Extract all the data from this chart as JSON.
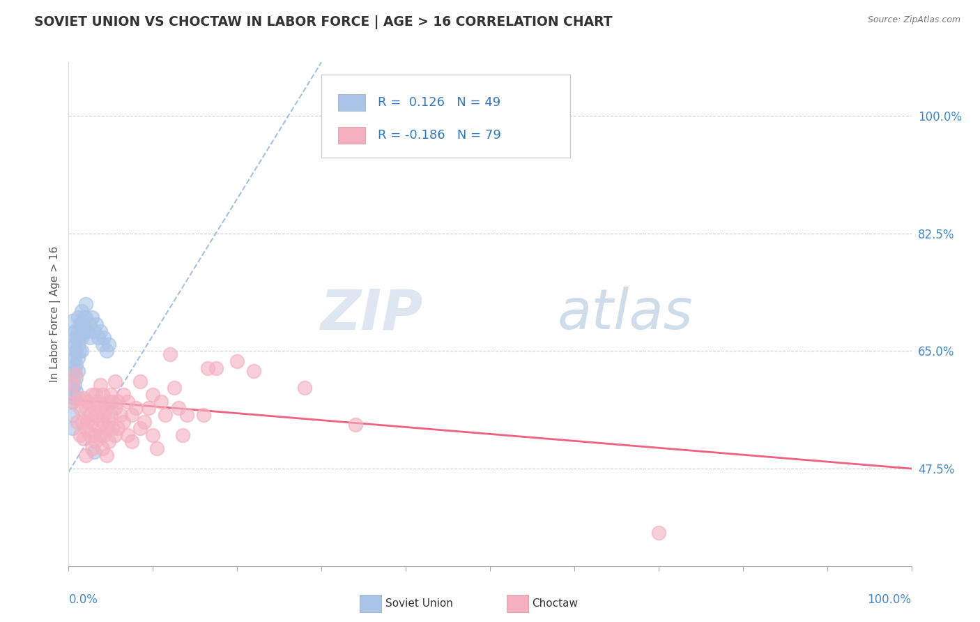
{
  "title": "SOVIET UNION VS CHOCTAW IN LABOR FORCE | AGE > 16 CORRELATION CHART",
  "source": "Source: ZipAtlas.com",
  "ylabel": "In Labor Force | Age > 16",
  "ytick_labels": [
    "47.5%",
    "65.0%",
    "82.5%",
    "100.0%"
  ],
  "ytick_values": [
    0.475,
    0.65,
    0.825,
    1.0
  ],
  "xlim": [
    0.0,
    1.0
  ],
  "ylim": [
    0.33,
    1.08
  ],
  "watermark_zip": "ZIP",
  "watermark_atlas": "atlas",
  "soviet_color": "#aac4e8",
  "choctaw_color": "#f4afc0",
  "soviet_line_color": "#99bbdd",
  "choctaw_line_color": "#f06080",
  "soviet_scatter": [
    [
      0.005,
      0.695
    ],
    [
      0.005,
      0.675
    ],
    [
      0.005,
      0.655
    ],
    [
      0.005,
      0.635
    ],
    [
      0.005,
      0.615
    ],
    [
      0.005,
      0.595
    ],
    [
      0.005,
      0.575
    ],
    [
      0.005,
      0.555
    ],
    [
      0.005,
      0.535
    ],
    [
      0.007,
      0.68
    ],
    [
      0.007,
      0.66
    ],
    [
      0.007,
      0.64
    ],
    [
      0.007,
      0.62
    ],
    [
      0.007,
      0.6
    ],
    [
      0.007,
      0.58
    ],
    [
      0.009,
      0.67
    ],
    [
      0.009,
      0.65
    ],
    [
      0.009,
      0.63
    ],
    [
      0.009,
      0.61
    ],
    [
      0.009,
      0.59
    ],
    [
      0.011,
      0.7
    ],
    [
      0.011,
      0.68
    ],
    [
      0.011,
      0.66
    ],
    [
      0.011,
      0.64
    ],
    [
      0.011,
      0.62
    ],
    [
      0.013,
      0.69
    ],
    [
      0.013,
      0.67
    ],
    [
      0.013,
      0.65
    ],
    [
      0.015,
      0.71
    ],
    [
      0.015,
      0.69
    ],
    [
      0.015,
      0.67
    ],
    [
      0.015,
      0.65
    ],
    [
      0.018,
      0.7
    ],
    [
      0.018,
      0.68
    ],
    [
      0.02,
      0.72
    ],
    [
      0.02,
      0.7
    ],
    [
      0.022,
      0.68
    ],
    [
      0.025,
      0.69
    ],
    [
      0.025,
      0.67
    ],
    [
      0.028,
      0.7
    ],
    [
      0.03,
      0.68
    ],
    [
      0.03,
      0.5
    ],
    [
      0.033,
      0.69
    ],
    [
      0.035,
      0.67
    ],
    [
      0.038,
      0.68
    ],
    [
      0.04,
      0.66
    ],
    [
      0.042,
      0.67
    ],
    [
      0.045,
      0.65
    ],
    [
      0.048,
      0.66
    ]
  ],
  "choctaw_scatter": [
    [
      0.005,
      0.6
    ],
    [
      0.005,
      0.575
    ],
    [
      0.008,
      0.615
    ],
    [
      0.01,
      0.545
    ],
    [
      0.012,
      0.58
    ],
    [
      0.014,
      0.565
    ],
    [
      0.014,
      0.525
    ],
    [
      0.016,
      0.545
    ],
    [
      0.018,
      0.58
    ],
    [
      0.018,
      0.52
    ],
    [
      0.02,
      0.565
    ],
    [
      0.02,
      0.535
    ],
    [
      0.02,
      0.495
    ],
    [
      0.022,
      0.575
    ],
    [
      0.022,
      0.545
    ],
    [
      0.025,
      0.555
    ],
    [
      0.025,
      0.525
    ],
    [
      0.028,
      0.585
    ],
    [
      0.028,
      0.545
    ],
    [
      0.028,
      0.505
    ],
    [
      0.03,
      0.565
    ],
    [
      0.03,
      0.525
    ],
    [
      0.032,
      0.585
    ],
    [
      0.032,
      0.555
    ],
    [
      0.032,
      0.515
    ],
    [
      0.035,
      0.575
    ],
    [
      0.035,
      0.535
    ],
    [
      0.038,
      0.6
    ],
    [
      0.038,
      0.565
    ],
    [
      0.038,
      0.525
    ],
    [
      0.04,
      0.585
    ],
    [
      0.04,
      0.545
    ],
    [
      0.04,
      0.505
    ],
    [
      0.042,
      0.555
    ],
    [
      0.042,
      0.525
    ],
    [
      0.045,
      0.565
    ],
    [
      0.045,
      0.535
    ],
    [
      0.045,
      0.495
    ],
    [
      0.048,
      0.575
    ],
    [
      0.048,
      0.545
    ],
    [
      0.048,
      0.515
    ],
    [
      0.05,
      0.585
    ],
    [
      0.05,
      0.555
    ],
    [
      0.052,
      0.575
    ],
    [
      0.052,
      0.535
    ],
    [
      0.055,
      0.605
    ],
    [
      0.055,
      0.565
    ],
    [
      0.055,
      0.525
    ],
    [
      0.058,
      0.575
    ],
    [
      0.058,
      0.535
    ],
    [
      0.062,
      0.555
    ],
    [
      0.065,
      0.585
    ],
    [
      0.065,
      0.545
    ],
    [
      0.07,
      0.575
    ],
    [
      0.07,
      0.525
    ],
    [
      0.075,
      0.555
    ],
    [
      0.075,
      0.515
    ],
    [
      0.08,
      0.565
    ],
    [
      0.085,
      0.605
    ],
    [
      0.085,
      0.535
    ],
    [
      0.09,
      0.545
    ],
    [
      0.095,
      0.565
    ],
    [
      0.1,
      0.585
    ],
    [
      0.1,
      0.525
    ],
    [
      0.105,
      0.505
    ],
    [
      0.11,
      0.575
    ],
    [
      0.115,
      0.555
    ],
    [
      0.12,
      0.645
    ],
    [
      0.125,
      0.595
    ],
    [
      0.13,
      0.565
    ],
    [
      0.135,
      0.525
    ],
    [
      0.14,
      0.555
    ],
    [
      0.16,
      0.555
    ],
    [
      0.165,
      0.625
    ],
    [
      0.175,
      0.625
    ],
    [
      0.2,
      0.635
    ],
    [
      0.22,
      0.62
    ],
    [
      0.28,
      0.595
    ],
    [
      0.34,
      0.54
    ],
    [
      0.7,
      0.38
    ]
  ],
  "background_color": "#ffffff",
  "grid_color": "#cccccc",
  "title_color": "#333333",
  "xtick_positions": [
    0.0,
    0.1,
    0.2,
    0.3,
    0.4,
    0.5,
    0.6,
    0.7,
    0.8,
    0.9,
    1.0
  ]
}
